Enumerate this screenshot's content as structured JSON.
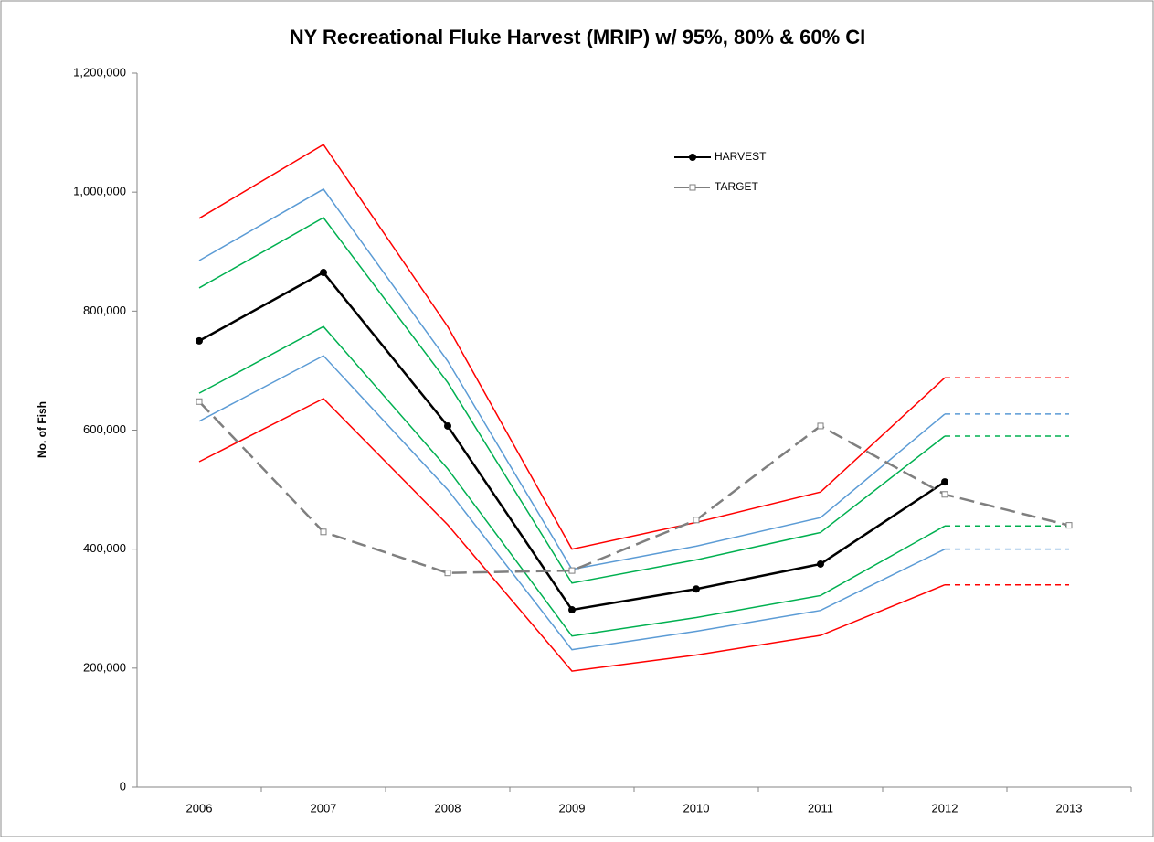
{
  "chart_data": {
    "type": "line",
    "title": "NY Recreational Fluke Harvest (MRIP) w/ 95%, 80% & 60% CI",
    "y_label": "No. of Fish",
    "categories": [
      "2006",
      "2007",
      "2008",
      "2009",
      "2010",
      "2011",
      "2012",
      "2013"
    ],
    "ylim": [
      0,
      1200000
    ],
    "yticks": [
      0,
      {
        "value": 200000,
        "label": "200,000"
      },
      {
        "value": 400000,
        "label": "400,000"
      },
      {
        "value": 600000,
        "label": "600,000"
      },
      {
        "value": 800000,
        "label": "800,000"
      },
      {
        "value": 1000000,
        "label": "1,000,000"
      },
      {
        "value": 1200000,
        "label": "1,200,000"
      }
    ],
    "grid": false,
    "legend": "top-center",
    "series": [
      {
        "color": "#ff0000",
        "values": [
          956000,
          1080000,
          774000,
          400000,
          445000,
          496000,
          688000,
          null
        ]
      },
      {
        "color": "#ff0000",
        "values": [
          547000,
          653000,
          441000,
          195000,
          222000,
          255000,
          340000,
          null
        ]
      },
      {
        "color": "#5b9bd5",
        "values": [
          885000,
          1005000,
          716000,
          366000,
          405000,
          453000,
          627000,
          null
        ]
      },
      {
        "color": "#5b9bd5",
        "values": [
          615000,
          725000,
          500000,
          231000,
          262000,
          297000,
          400000,
          null
        ]
      },
      {
        "color": "#00b050",
        "values": [
          839000,
          957000,
          680000,
          343000,
          382000,
          428000,
          590000,
          null
        ]
      },
      {
        "color": "#00b050",
        "values": [
          662000,
          774000,
          535000,
          254000,
          285000,
          322000,
          439000,
          null
        ]
      },
      {
        "color": "#ff0000",
        "dash": "short",
        "values": [
          null,
          null,
          null,
          null,
          null,
          null,
          688000,
          688000
        ]
      },
      {
        "color": "#ff0000",
        "dash": "short",
        "values": [
          null,
          null,
          null,
          null,
          null,
          null,
          340000,
          340000
        ]
      },
      {
        "color": "#5b9bd5",
        "dash": "short",
        "values": [
          null,
          null,
          null,
          null,
          null,
          null,
          627000,
          627000
        ]
      },
      {
        "color": "#5b9bd5",
        "dash": "short",
        "values": [
          null,
          null,
          null,
          null,
          null,
          null,
          400000,
          400000
        ]
      },
      {
        "color": "#00b050",
        "dash": "short",
        "values": [
          null,
          null,
          null,
          null,
          null,
          null,
          590000,
          590000
        ]
      },
      {
        "color": "#00b050",
        "dash": "short",
        "values": [
          null,
          null,
          null,
          null,
          null,
          null,
          439000,
          439000
        ]
      },
      {
        "name": "HARVEST",
        "color": "#000000",
        "marker": "circle",
        "values": [
          750000,
          865000,
          607000,
          298000,
          333000,
          375000,
          513000,
          null
        ]
      },
      {
        "name": "TARGET",
        "color": "#7f7f7f",
        "dash": "long",
        "marker": "square",
        "values": [
          648000,
          429000,
          360000,
          364000,
          449000,
          607000,
          492000,
          440000
        ]
      }
    ]
  }
}
